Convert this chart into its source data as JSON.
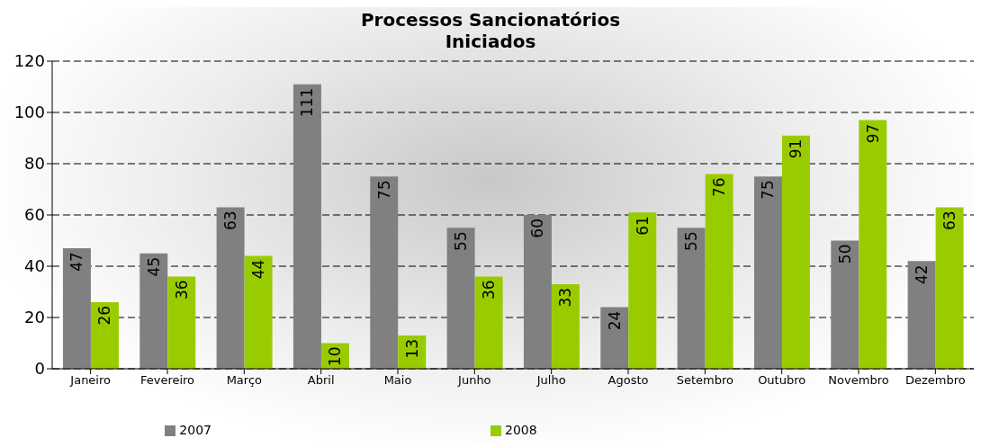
{
  "chart_data": {
    "type": "bar",
    "title": "Processos Sancionatórios Iniciados",
    "categories": [
      "Janeiro",
      "Fevereiro",
      "Março",
      "Abril",
      "Maio",
      "Junho",
      "Julho",
      "Agosto",
      "Setembro",
      "Outubro",
      "Novembro",
      "Dezembro"
    ],
    "series": [
      {
        "name": "2007",
        "color": "#808080",
        "values": [
          47,
          45,
          63,
          111,
          75,
          55,
          60,
          24,
          55,
          75,
          50,
          42
        ]
      },
      {
        "name": "2008",
        "color": "#99cc00",
        "values": [
          26,
          36,
          44,
          10,
          13,
          36,
          33,
          61,
          76,
          91,
          97,
          63
        ]
      }
    ],
    "ylim": [
      0,
      120
    ],
    "yticks": [
      0,
      20,
      40,
      60,
      80,
      100,
      120
    ],
    "grid": "y",
    "legend": "bottom",
    "data_labels": true
  }
}
